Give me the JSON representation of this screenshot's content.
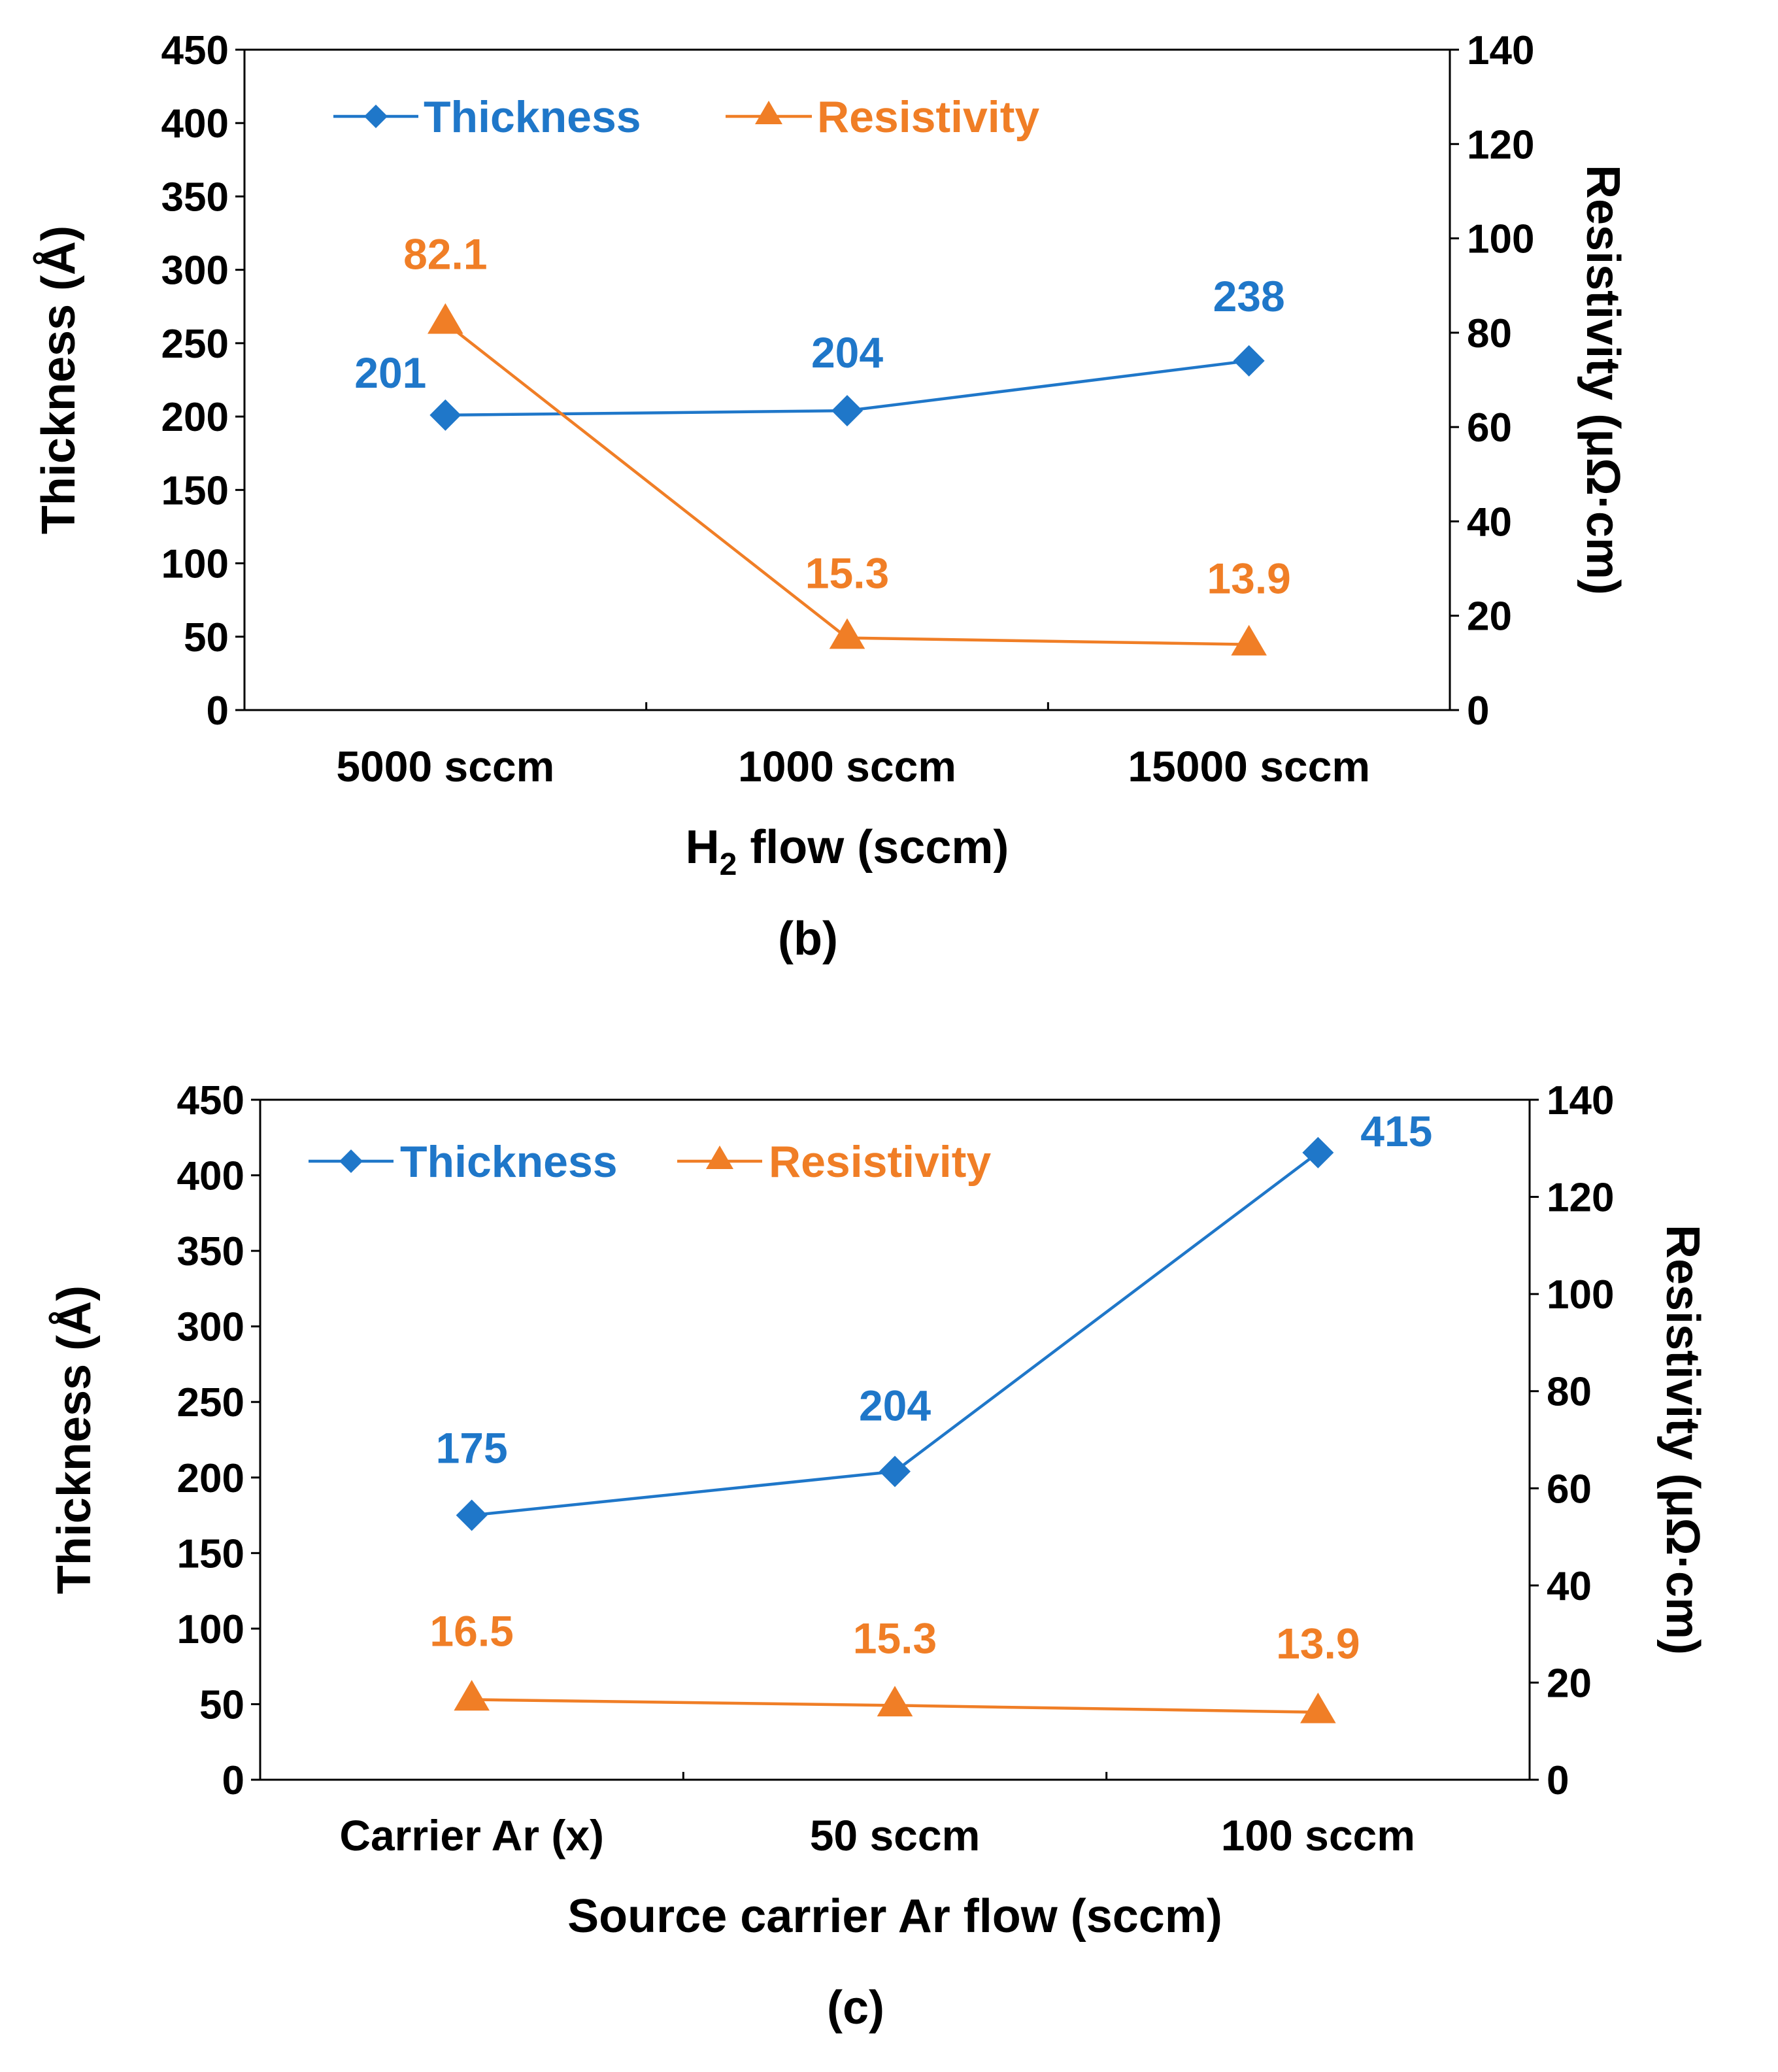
{
  "colors": {
    "thickness": "#1f77c9",
    "resistivity": "#f07e26",
    "axis": "#000000"
  },
  "chart_data": [
    {
      "type": "line",
      "panel_label": "(b)",
      "xlabel": "H",
      "xlabel_sub": "2",
      "xlabel_rest": " flow (sccm)",
      "ylabel": "Thickness (Å)",
      "y2label": "Resistivity (μΩ·cm)",
      "categories": [
        "5000 sccm",
        "1000 sccm",
        "15000 sccm"
      ],
      "ylim": [
        0,
        450
      ],
      "yticks": [
        0,
        50,
        100,
        150,
        200,
        250,
        300,
        350,
        400,
        450
      ],
      "y2lim": [
        0,
        140
      ],
      "y2ticks": [
        0,
        20,
        40,
        60,
        80,
        100,
        120,
        140
      ],
      "legend_position": "top-left",
      "series": [
        {
          "name": "Thickness",
          "axis": "left",
          "marker": "diamond",
          "color": "#1f77c9",
          "values": [
            201,
            204,
            238
          ],
          "labels": [
            "201",
            "204",
            "238"
          ]
        },
        {
          "name": "Resistivity",
          "axis": "right",
          "marker": "triangle",
          "color": "#f07e26",
          "values": [
            82.1,
            15.3,
            13.9
          ],
          "labels": [
            "82.1",
            "15.3",
            "13.9"
          ]
        }
      ]
    },
    {
      "type": "line",
      "panel_label": "(c)",
      "xlabel": "Source carrier Ar flow (sccm)",
      "xlabel_sub": "",
      "xlabel_rest": "",
      "ylabel": "Thickness (Å)",
      "y2label": "Resistivity (μΩ·cm)",
      "categories": [
        "Carrier Ar (x)",
        "50 sccm",
        "100 sccm"
      ],
      "ylim": [
        0,
        450
      ],
      "yticks": [
        0,
        50,
        100,
        150,
        200,
        250,
        300,
        350,
        400,
        450
      ],
      "y2lim": [
        0,
        140
      ],
      "y2ticks": [
        0,
        20,
        40,
        60,
        80,
        100,
        120,
        140
      ],
      "legend_position": "top-left",
      "series": [
        {
          "name": "Thickness",
          "axis": "left",
          "marker": "diamond",
          "color": "#1f77c9",
          "values": [
            175,
            204,
            415
          ],
          "labels": [
            "175",
            "204",
            "415"
          ]
        },
        {
          "name": "Resistivity",
          "axis": "right",
          "marker": "triangle",
          "color": "#f07e26",
          "values": [
            16.5,
            15.3,
            13.9
          ],
          "labels": [
            "16.5",
            "15.3",
            "13.9"
          ]
        }
      ]
    }
  ]
}
